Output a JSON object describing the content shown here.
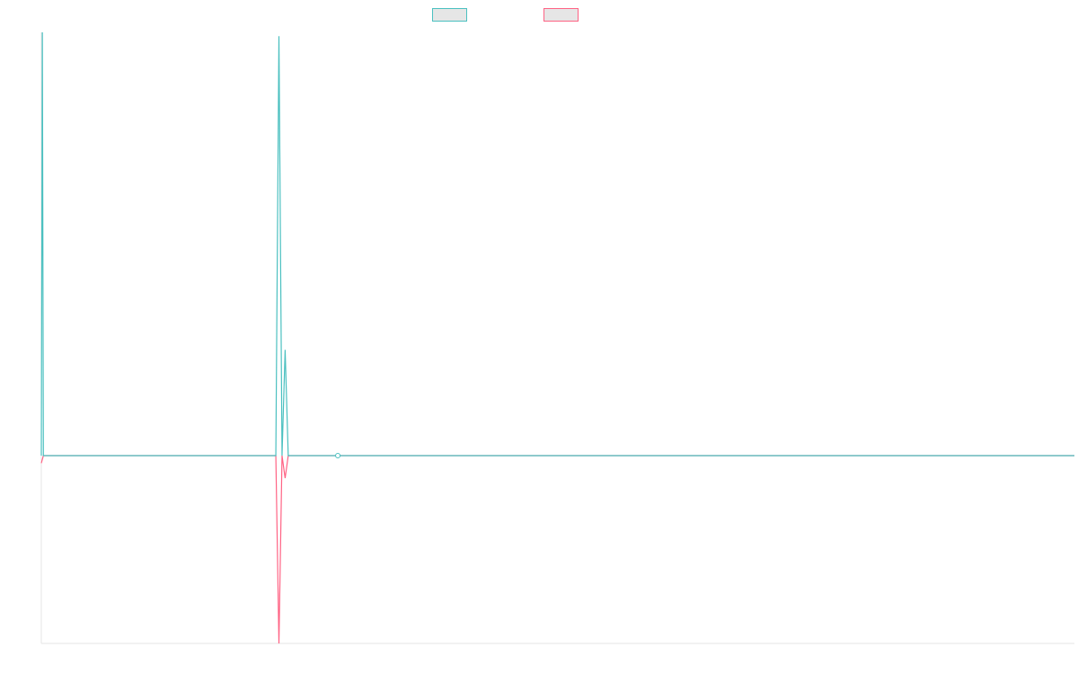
{
  "chart_data": {
    "type": "line",
    "title": "",
    "xlabel": "",
    "ylabel": "",
    "x_range": [
      0,
      100
    ],
    "ylim": [
      -50,
      112
    ],
    "grid": false,
    "legend_placement": "top-center",
    "series": [
      {
        "color": "#4bc0c0",
        "points": [
          [
            0,
            0
          ],
          [
            0.1,
            112
          ],
          [
            0.2,
            0
          ],
          [
            22.7,
            0
          ],
          [
            23.0,
            111
          ],
          [
            23.3,
            0
          ],
          [
            23.6,
            28
          ],
          [
            23.9,
            0
          ],
          [
            28.7,
            0
          ],
          [
            100,
            0
          ]
        ]
      },
      {
        "color": "#ff6384",
        "points": [
          [
            0,
            -2
          ],
          [
            0.2,
            0
          ],
          [
            22.7,
            0
          ],
          [
            23.0,
            -50
          ],
          [
            23.3,
            0
          ],
          [
            23.6,
            -6
          ],
          [
            23.9,
            0
          ],
          [
            100,
            0
          ]
        ]
      }
    ]
  }
}
